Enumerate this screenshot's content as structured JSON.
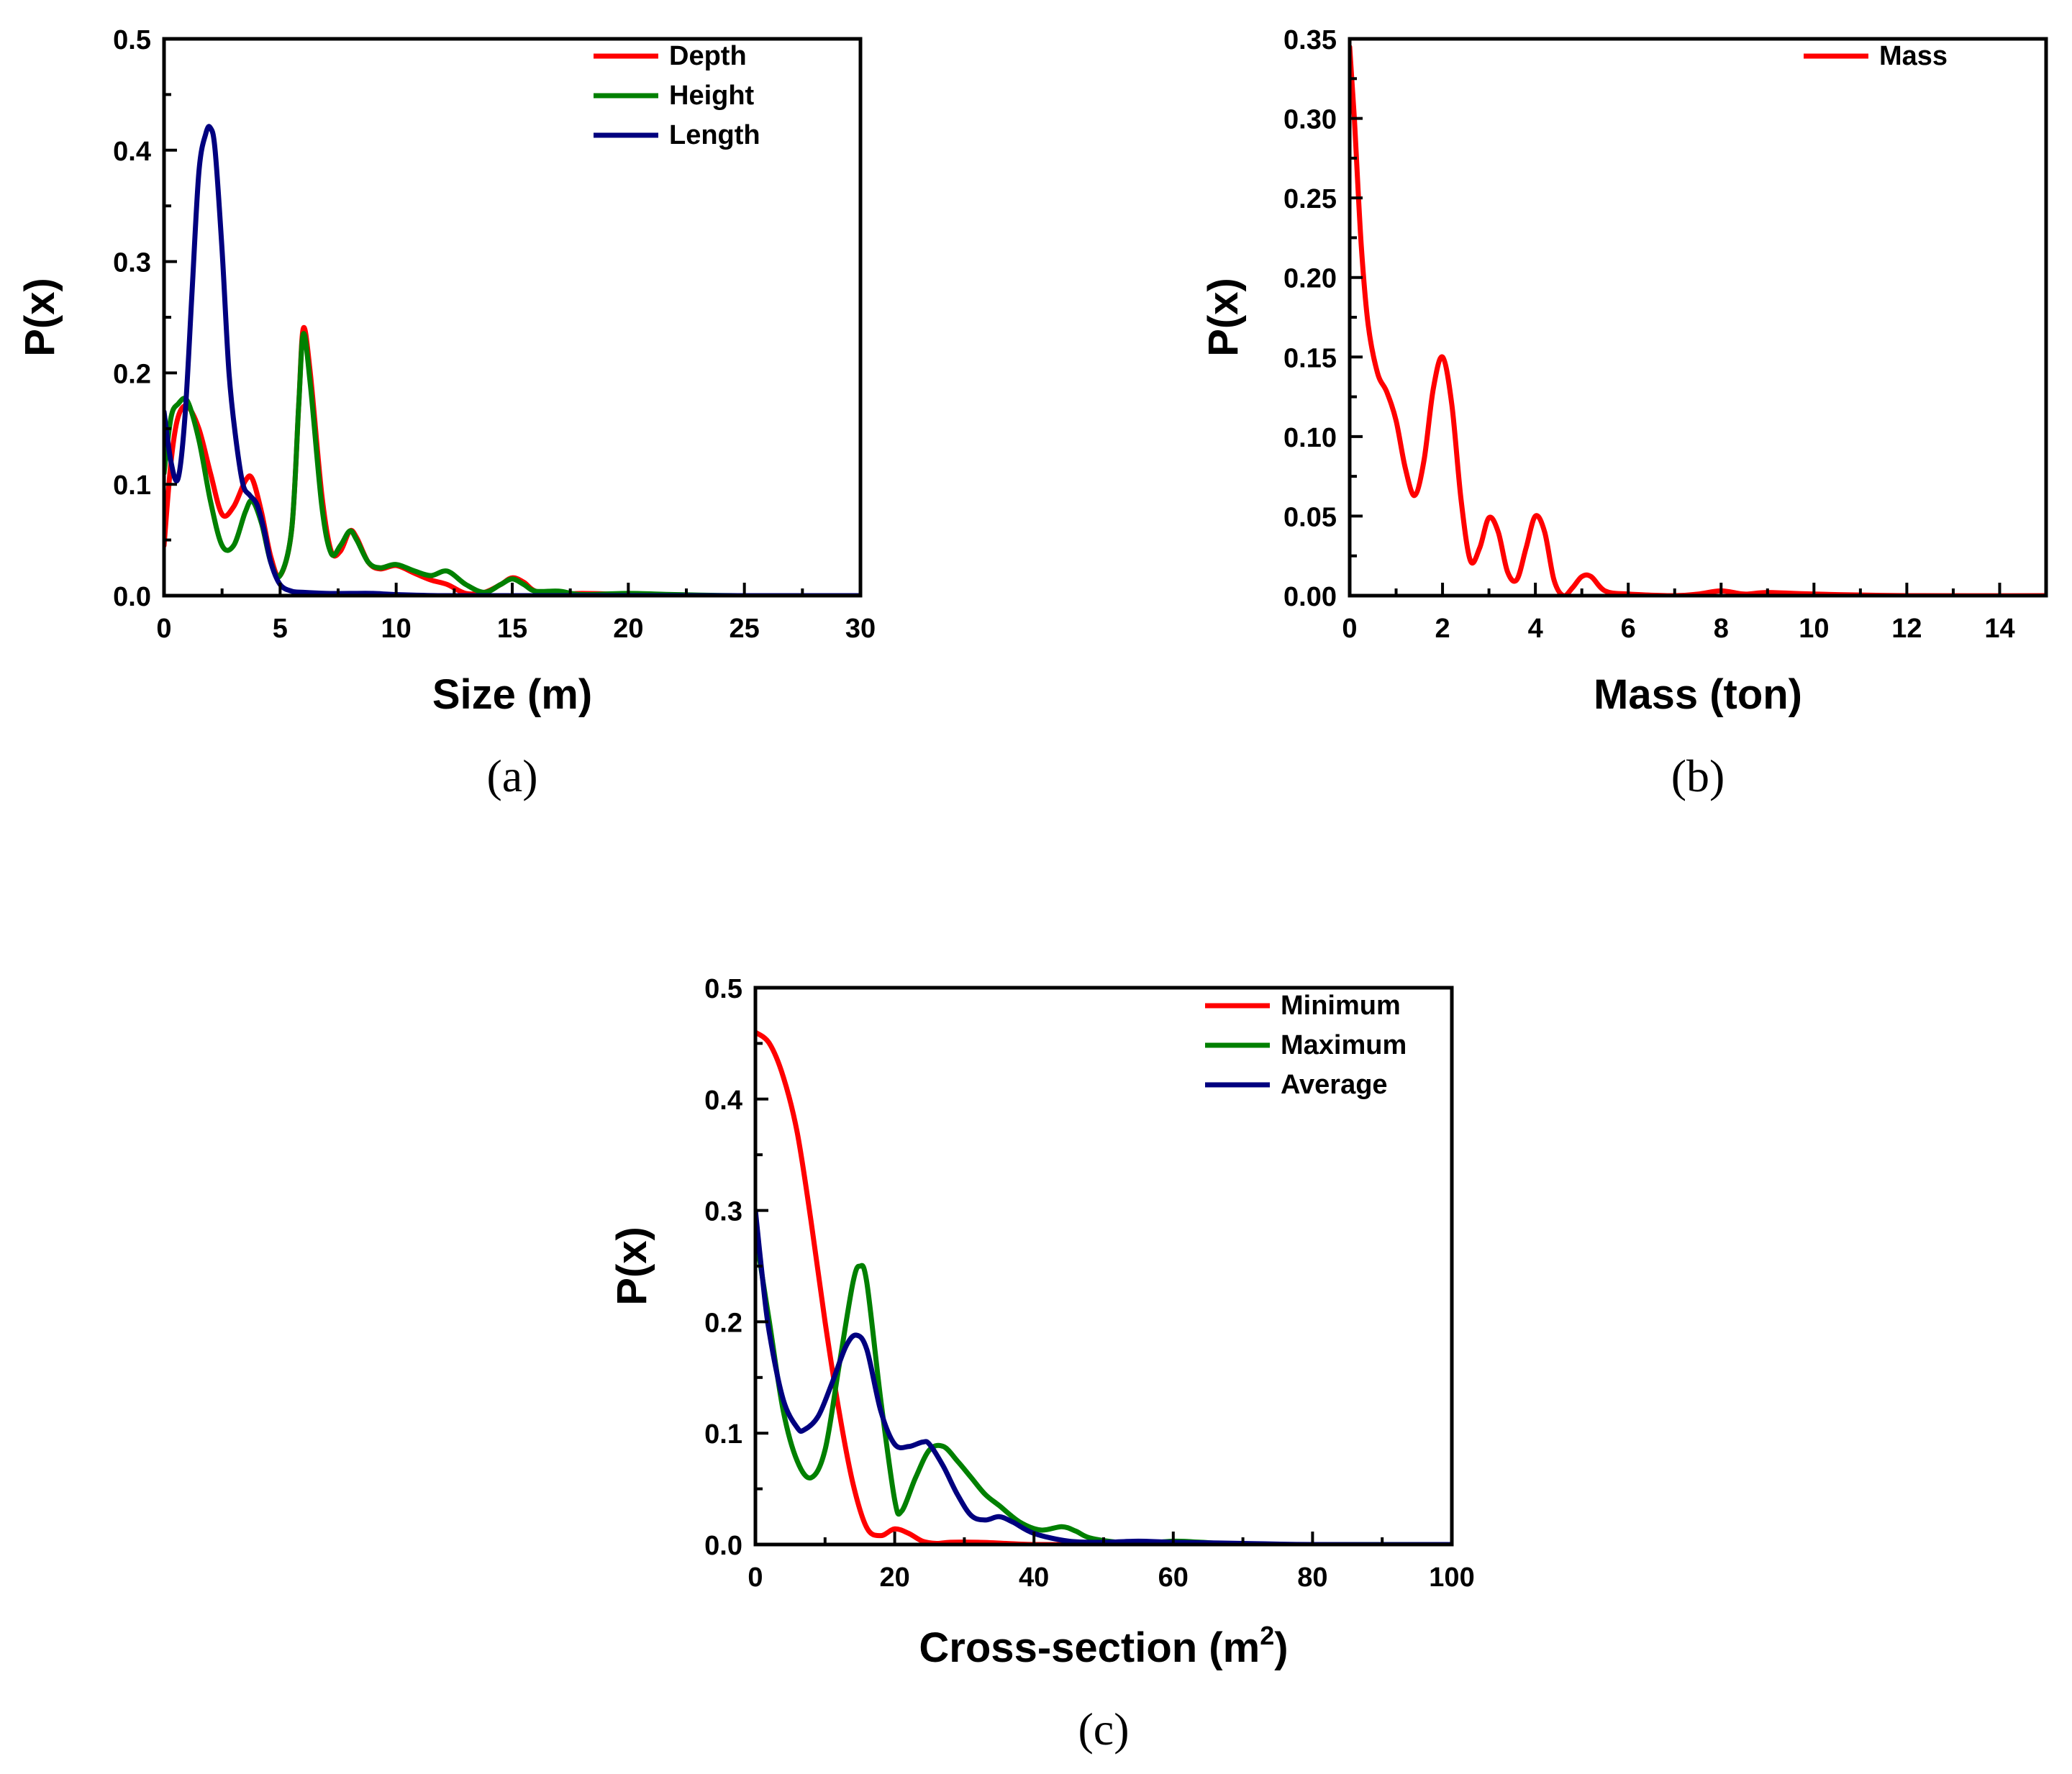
{
  "chart_data": [
    {
      "id": "a",
      "type": "line",
      "panel_label": "(a)",
      "xlabel": "Size (m)",
      "ylabel": "P(x)",
      "xlim": [
        0,
        30
      ],
      "ylim": [
        0,
        0.5
      ],
      "xticks": [
        0,
        5,
        10,
        15,
        20,
        25,
        30
      ],
      "xtick_labels": [
        "0",
        "5",
        "10",
        "15",
        "20",
        "25",
        "30"
      ],
      "yticks": [
        0,
        0.1,
        0.2,
        0.3,
        0.4,
        0.5
      ],
      "ytick_labels": [
        "0.0",
        "0.1",
        "0.2",
        "0.3",
        "0.4",
        "0.5"
      ],
      "legend_position": "top-right",
      "series": [
        {
          "name": "Depth",
          "color": "#ff0000",
          "x": [
            0,
            0.3,
            0.6,
            1.0,
            1.5,
            2.0,
            2.5,
            3.0,
            3.5,
            3.8,
            4.2,
            4.6,
            5.0,
            5.5,
            5.8,
            6.0,
            6.3,
            6.8,
            7.2,
            7.6,
            8.0,
            8.3,
            8.8,
            9.3,
            10.0,
            10.8,
            11.5,
            12.2,
            13.0,
            13.8,
            14.5,
            15.0,
            15.5,
            16.0,
            17.0,
            18.0,
            20.0,
            22.0,
            25.0,
            30.0
          ],
          "y": [
            0.045,
            0.12,
            0.16,
            0.17,
            0.15,
            0.11,
            0.073,
            0.08,
            0.103,
            0.105,
            0.075,
            0.035,
            0.018,
            0.06,
            0.17,
            0.24,
            0.2,
            0.09,
            0.04,
            0.04,
            0.058,
            0.052,
            0.03,
            0.024,
            0.027,
            0.02,
            0.014,
            0.01,
            0.002,
            0.003,
            0.01,
            0.016,
            0.012,
            0.004,
            0.001,
            0.002,
            0.001,
            0.0,
            0.0,
            0.0
          ]
        },
        {
          "name": "Height",
          "color": "#008000",
          "x": [
            0,
            0.3,
            0.6,
            1.0,
            1.5,
            2.0,
            2.5,
            3.0,
            3.5,
            3.8,
            4.2,
            4.6,
            5.0,
            5.5,
            5.8,
            6.0,
            6.3,
            6.8,
            7.2,
            7.6,
            8.0,
            8.3,
            8.8,
            9.3,
            10.0,
            10.8,
            11.5,
            12.2,
            13.0,
            13.8,
            14.5,
            15.0,
            15.5,
            16.0,
            17.0,
            18.0,
            20.0,
            22.0,
            25.0,
            30.0
          ],
          "y": [
            0.11,
            0.16,
            0.172,
            0.175,
            0.14,
            0.085,
            0.045,
            0.045,
            0.075,
            0.085,
            0.065,
            0.03,
            0.018,
            0.06,
            0.17,
            0.235,
            0.19,
            0.08,
            0.038,
            0.045,
            0.058,
            0.05,
            0.03,
            0.025,
            0.028,
            0.022,
            0.018,
            0.022,
            0.01,
            0.003,
            0.01,
            0.015,
            0.01,
            0.004,
            0.004,
            0.001,
            0.002,
            0.001,
            0.0,
            0.0
          ]
        },
        {
          "name": "Length",
          "color": "#00007f",
          "x": [
            0,
            0.3,
            0.6,
            0.9,
            1.2,
            1.5,
            1.8,
            2.0,
            2.2,
            2.5,
            2.8,
            3.1,
            3.4,
            3.7,
            4.0,
            4.3,
            4.6,
            5.0,
            5.5,
            6.0,
            7.0,
            8.0,
            9.0,
            10.0,
            12.0,
            15.0,
            20.0,
            30.0
          ],
          "y": [
            0.165,
            0.12,
            0.105,
            0.16,
            0.27,
            0.38,
            0.415,
            0.42,
            0.4,
            0.31,
            0.2,
            0.14,
            0.1,
            0.09,
            0.082,
            0.06,
            0.03,
            0.01,
            0.004,
            0.003,
            0.002,
            0.002,
            0.002,
            0.001,
            0.0,
            0.0,
            0.0,
            0.0
          ]
        }
      ]
    },
    {
      "id": "b",
      "type": "line",
      "panel_label": "(b)",
      "xlabel": "Mass (ton)",
      "ylabel": "P(x)",
      "xlim": [
        0,
        15
      ],
      "ylim": [
        0,
        0.35
      ],
      "xticks": [
        0,
        2,
        4,
        6,
        8,
        10,
        12,
        14
      ],
      "xtick_labels": [
        "0",
        "2",
        "4",
        "6",
        "8",
        "10",
        "12",
        "14"
      ],
      "yticks": [
        0,
        0.05,
        0.1,
        0.15,
        0.2,
        0.25,
        0.3,
        0.35
      ],
      "ytick_labels": [
        "0.00",
        "0.05",
        "0.10",
        "0.15",
        "0.20",
        "0.25",
        "0.30",
        "0.35"
      ],
      "legend_position": "top-right",
      "series": [
        {
          "name": "Mass",
          "color": "#ff0000",
          "x": [
            0,
            0.1,
            0.25,
            0.4,
            0.6,
            0.8,
            1.0,
            1.2,
            1.4,
            1.6,
            1.8,
            2.0,
            2.2,
            2.4,
            2.6,
            2.8,
            3.0,
            3.2,
            3.4,
            3.6,
            3.8,
            4.0,
            4.2,
            4.4,
            4.6,
            4.8,
            5.0,
            5.2,
            5.5,
            6.0,
            7.0,
            7.5,
            8.0,
            8.5,
            9.0,
            10.0,
            12.0,
            15.0
          ],
          "y": [
            0.345,
            0.3,
            0.22,
            0.17,
            0.14,
            0.128,
            0.11,
            0.08,
            0.063,
            0.085,
            0.13,
            0.15,
            0.12,
            0.06,
            0.022,
            0.03,
            0.049,
            0.04,
            0.015,
            0.01,
            0.03,
            0.05,
            0.04,
            0.01,
            0.0,
            0.005,
            0.012,
            0.012,
            0.003,
            0.001,
            0.0,
            0.001,
            0.003,
            0.001,
            0.002,
            0.001,
            0.0,
            0.0
          ]
        }
      ]
    },
    {
      "id": "c",
      "type": "line",
      "panel_label": "(c)",
      "xlabel": "Cross-section (m",
      "xlabel_sup": "2",
      "xlabel_end": ")",
      "ylabel": "P(x)",
      "xlim": [
        0,
        100
      ],
      "ylim": [
        0,
        0.5
      ],
      "xticks": [
        0,
        20,
        40,
        60,
        80,
        100
      ],
      "xtick_labels": [
        "0",
        "20",
        "40",
        "60",
        "80",
        "100"
      ],
      "yticks": [
        0,
        0.1,
        0.2,
        0.3,
        0.4,
        0.5
      ],
      "ytick_labels": [
        "0.0",
        "0.1",
        "0.2",
        "0.3",
        "0.4",
        "0.5"
      ],
      "legend_position": "top-right",
      "series": [
        {
          "name": "Minimum",
          "color": "#ff0000",
          "x": [
            0,
            2,
            4,
            6,
            8,
            10,
            12,
            14,
            16,
            18,
            20,
            22,
            24,
            26,
            28,
            32,
            36,
            40,
            50,
            60,
            80,
            100
          ],
          "y": [
            0.46,
            0.45,
            0.42,
            0.37,
            0.29,
            0.2,
            0.12,
            0.055,
            0.015,
            0.008,
            0.014,
            0.01,
            0.003,
            0.001,
            0.002,
            0.002,
            0.001,
            0.0,
            0.0,
            0.0,
            0.0,
            0.0
          ]
        },
        {
          "name": "Maximum",
          "color": "#008000",
          "x": [
            0,
            2,
            4,
            6,
            8,
            10,
            12,
            14,
            15,
            16,
            18,
            20,
            21,
            23,
            25,
            27,
            29,
            31,
            33,
            35,
            38,
            41,
            44,
            46,
            48,
            52,
            56,
            60,
            64,
            70,
            80,
            100
          ],
          "y": [
            0.28,
            0.2,
            0.12,
            0.075,
            0.06,
            0.085,
            0.16,
            0.235,
            0.25,
            0.235,
            0.13,
            0.04,
            0.03,
            0.06,
            0.085,
            0.088,
            0.075,
            0.06,
            0.045,
            0.035,
            0.02,
            0.013,
            0.016,
            0.012,
            0.006,
            0.002,
            0.001,
            0.003,
            0.002,
            0.0,
            0.0,
            0.0
          ]
        },
        {
          "name": "Average",
          "color": "#00007f",
          "x": [
            0,
            1,
            2,
            4,
            6,
            7,
            9,
            11,
            13,
            14.5,
            16,
            18,
            20,
            22,
            24,
            25,
            27,
            29,
            31,
            33,
            35,
            37,
            40,
            45,
            50,
            55,
            60,
            70,
            80,
            100
          ],
          "y": [
            0.3,
            0.24,
            0.19,
            0.13,
            0.105,
            0.103,
            0.115,
            0.145,
            0.178,
            0.188,
            0.175,
            0.12,
            0.09,
            0.088,
            0.092,
            0.09,
            0.07,
            0.045,
            0.026,
            0.022,
            0.025,
            0.02,
            0.01,
            0.003,
            0.002,
            0.003,
            0.002,
            0.001,
            0.0,
            0.0
          ]
        }
      ]
    }
  ]
}
